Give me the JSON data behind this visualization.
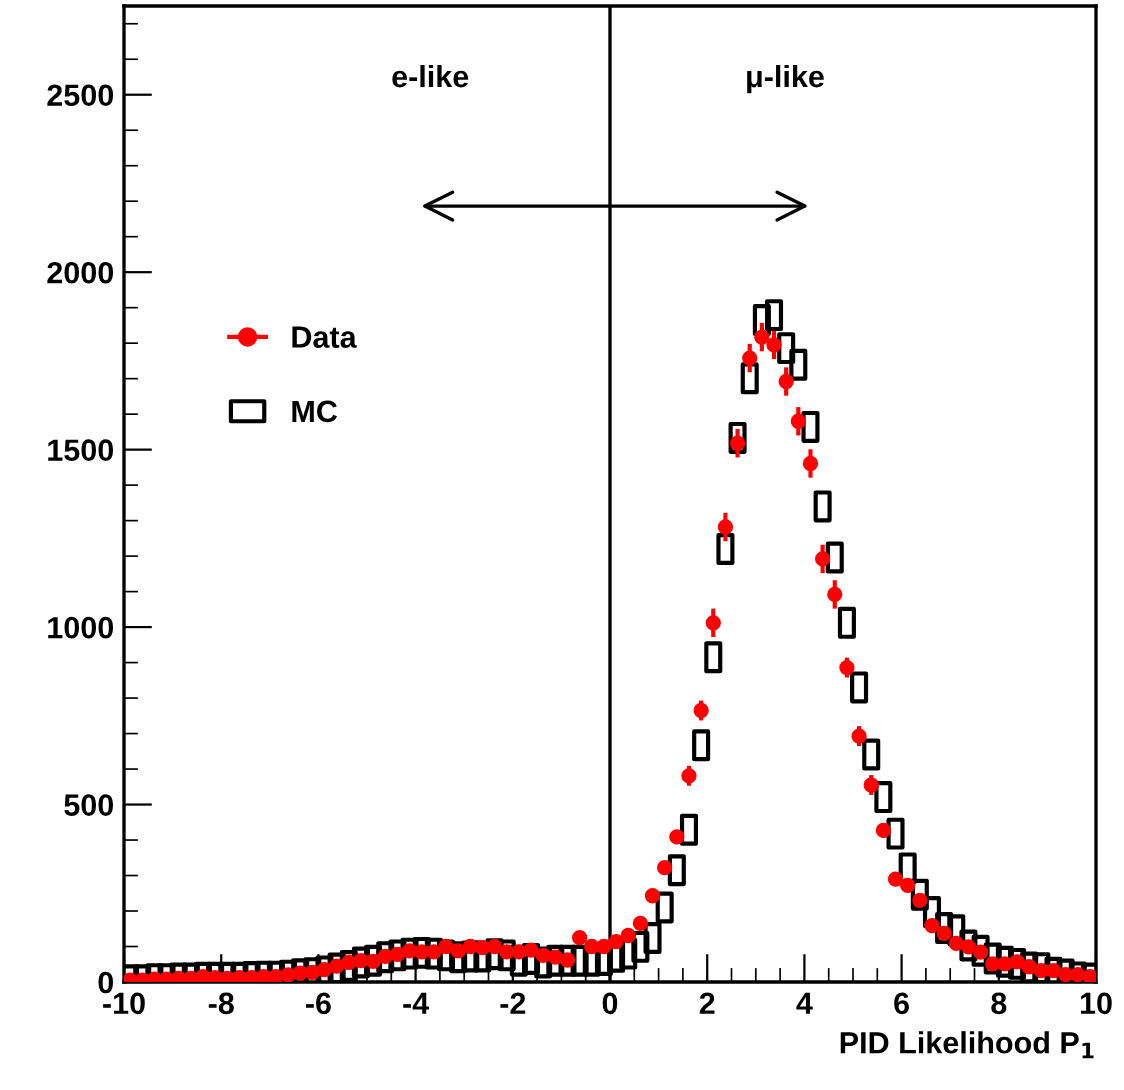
{
  "chart_data": {
    "type": "scatter",
    "xlabel": "PID Likelihood P$_{1}$",
    "x": [
      -9.875,
      -9.625,
      -9.375,
      -9.125,
      -8.875,
      -8.625,
      -8.375,
      -8.125,
      -7.875,
      -7.625,
      -7.375,
      -7.125,
      -6.875,
      -6.625,
      -6.375,
      -6.125,
      -5.875,
      -5.625,
      -5.375,
      -5.125,
      -4.875,
      -4.625,
      -4.375,
      -4.125,
      -3.875,
      -3.625,
      -3.375,
      -3.125,
      -2.875,
      -2.625,
      -2.375,
      -2.125,
      -1.875,
      -1.625,
      -1.375,
      -1.125,
      -0.875,
      -0.625,
      -0.375,
      -0.125,
      0.125,
      0.375,
      0.625,
      0.875,
      1.125,
      1.375,
      1.625,
      1.875,
      2.125,
      2.375,
      2.625,
      2.875,
      3.125,
      3.375,
      3.625,
      3.875,
      4.125,
      4.375,
      4.625,
      4.875,
      5.125,
      5.375,
      5.625,
      5.875,
      6.125,
      6.375,
      6.625,
      6.875,
      7.125,
      7.375,
      7.625,
      7.875,
      8.125,
      8.375,
      8.625,
      8.875,
      9.125,
      9.375,
      9.625,
      9.875
    ],
    "series": [
      {
        "name": "Data",
        "color": "#ff0000",
        "marker": "circle",
        "values": [
          5,
          5,
          8,
          8,
          10,
          10,
          15,
          12,
          10,
          12,
          12,
          15,
          15,
          20,
          25,
          27,
          35,
          45,
          55,
          60,
          58,
          72,
          78,
          88,
          85,
          85,
          100,
          88,
          100,
          97,
          100,
          85,
          85,
          90,
          75,
          70,
          62,
          125,
          100,
          100,
          114,
          131,
          165,
          243,
          322,
          409,
          581,
          765,
          1012,
          1282,
          1518,
          1758,
          1817,
          1795,
          1692,
          1580,
          1461,
          1192,
          1092,
          886,
          693,
          555,
          427,
          290,
          272,
          230,
          159,
          137,
          109,
          99,
          84,
          51,
          51,
          57,
          43,
          32,
          32,
          21,
          21,
          15
        ],
        "errors": [
          null,
          null,
          null,
          null,
          null,
          null,
          null,
          null,
          null,
          null,
          null,
          null,
          null,
          null,
          null,
          null,
          null,
          null,
          null,
          null,
          null,
          null,
          null,
          null,
          null,
          null,
          null,
          null,
          null,
          null,
          null,
          null,
          null,
          null,
          null,
          null,
          null,
          null,
          null,
          null,
          null,
          null,
          null,
          18,
          18,
          18,
          28,
          28,
          40,
          40,
          40,
          40,
          40,
          40,
          40,
          40,
          40,
          40,
          40,
          28,
          28,
          28,
          18,
          18,
          18,
          18,
          null,
          null,
          null,
          null,
          null,
          null,
          null,
          null,
          null,
          null,
          null,
          null,
          null,
          null
        ]
      },
      {
        "name": "MC",
        "color": "#000000",
        "marker": "square",
        "values": [
          5,
          5,
          8,
          8,
          10,
          10,
          12,
          12,
          12,
          12,
          14,
          15,
          15,
          18,
          22,
          25,
          30,
          38,
          45,
          55,
          60,
          70,
          75,
          80,
          82,
          80,
          75,
          70,
          72,
          72,
          78,
          75,
          60,
          65,
          55,
          60,
          60,
          60,
          60,
          62,
          71,
          80,
          99,
          124,
          210,
          315,
          429,
          667,
          915,
          1220,
          1533,
          1701,
          1865,
          1879,
          1786,
          1739,
          1564,
          1340,
          1196,
          1012,
          830,
          641,
          521,
          418,
          320,
          246,
          197,
          152,
          146,
          103,
          88,
          66,
          57,
          51,
          41,
          39,
          26,
          21,
          13,
          10
        ],
        "line_style": "none"
      }
    ],
    "xlim": [
      -10,
      10
    ],
    "ylim": [
      0,
      2750
    ],
    "xticks": [
      -10,
      -8,
      -6,
      -4,
      -2,
      0,
      2,
      4,
      6,
      8,
      10
    ],
    "yticks": [
      0,
      500,
      1000,
      1500,
      2000,
      2500
    ],
    "ref_lines": [
      {
        "axis": "x",
        "value": 0,
        "color": "#000000"
      }
    ],
    "annotations": [
      "e-like",
      "μ-like"
    ],
    "legend": "left",
    "grid": false
  }
}
